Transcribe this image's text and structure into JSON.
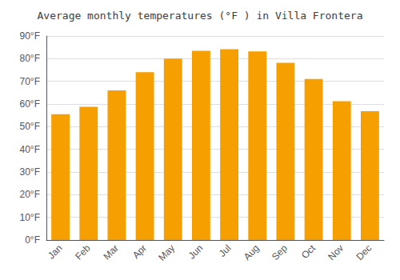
{
  "chart_data": {
    "type": "bar",
    "title": "Average monthly temperatures (°F ) in Villa Frontera",
    "categories": [
      "Jan",
      "Feb",
      "Mar",
      "Apr",
      "May",
      "Jun",
      "Jul",
      "Aug",
      "Sep",
      "Oct",
      "Nov",
      "Dec"
    ],
    "values": [
      55.5,
      58.8,
      66.0,
      74.0,
      80.0,
      83.5,
      84.2,
      83.2,
      78.2,
      71.0,
      61.2,
      56.8
    ],
    "color": "#F5A000",
    "ylim": [
      0,
      90
    ],
    "yticks": [
      {
        "value": 0,
        "label": "0°F"
      },
      {
        "value": 10,
        "label": "10°F"
      },
      {
        "value": 20,
        "label": "20°F"
      },
      {
        "value": 30,
        "label": "30°F"
      },
      {
        "value": 40,
        "label": "40°F"
      },
      {
        "value": 50,
        "label": "50°F"
      },
      {
        "value": 60,
        "label": "60°F"
      },
      {
        "value": 70,
        "label": "70°F"
      },
      {
        "value": 80,
        "label": "80°F"
      },
      {
        "value": 90,
        "label": "90°F"
      }
    ],
    "grid": true
  }
}
